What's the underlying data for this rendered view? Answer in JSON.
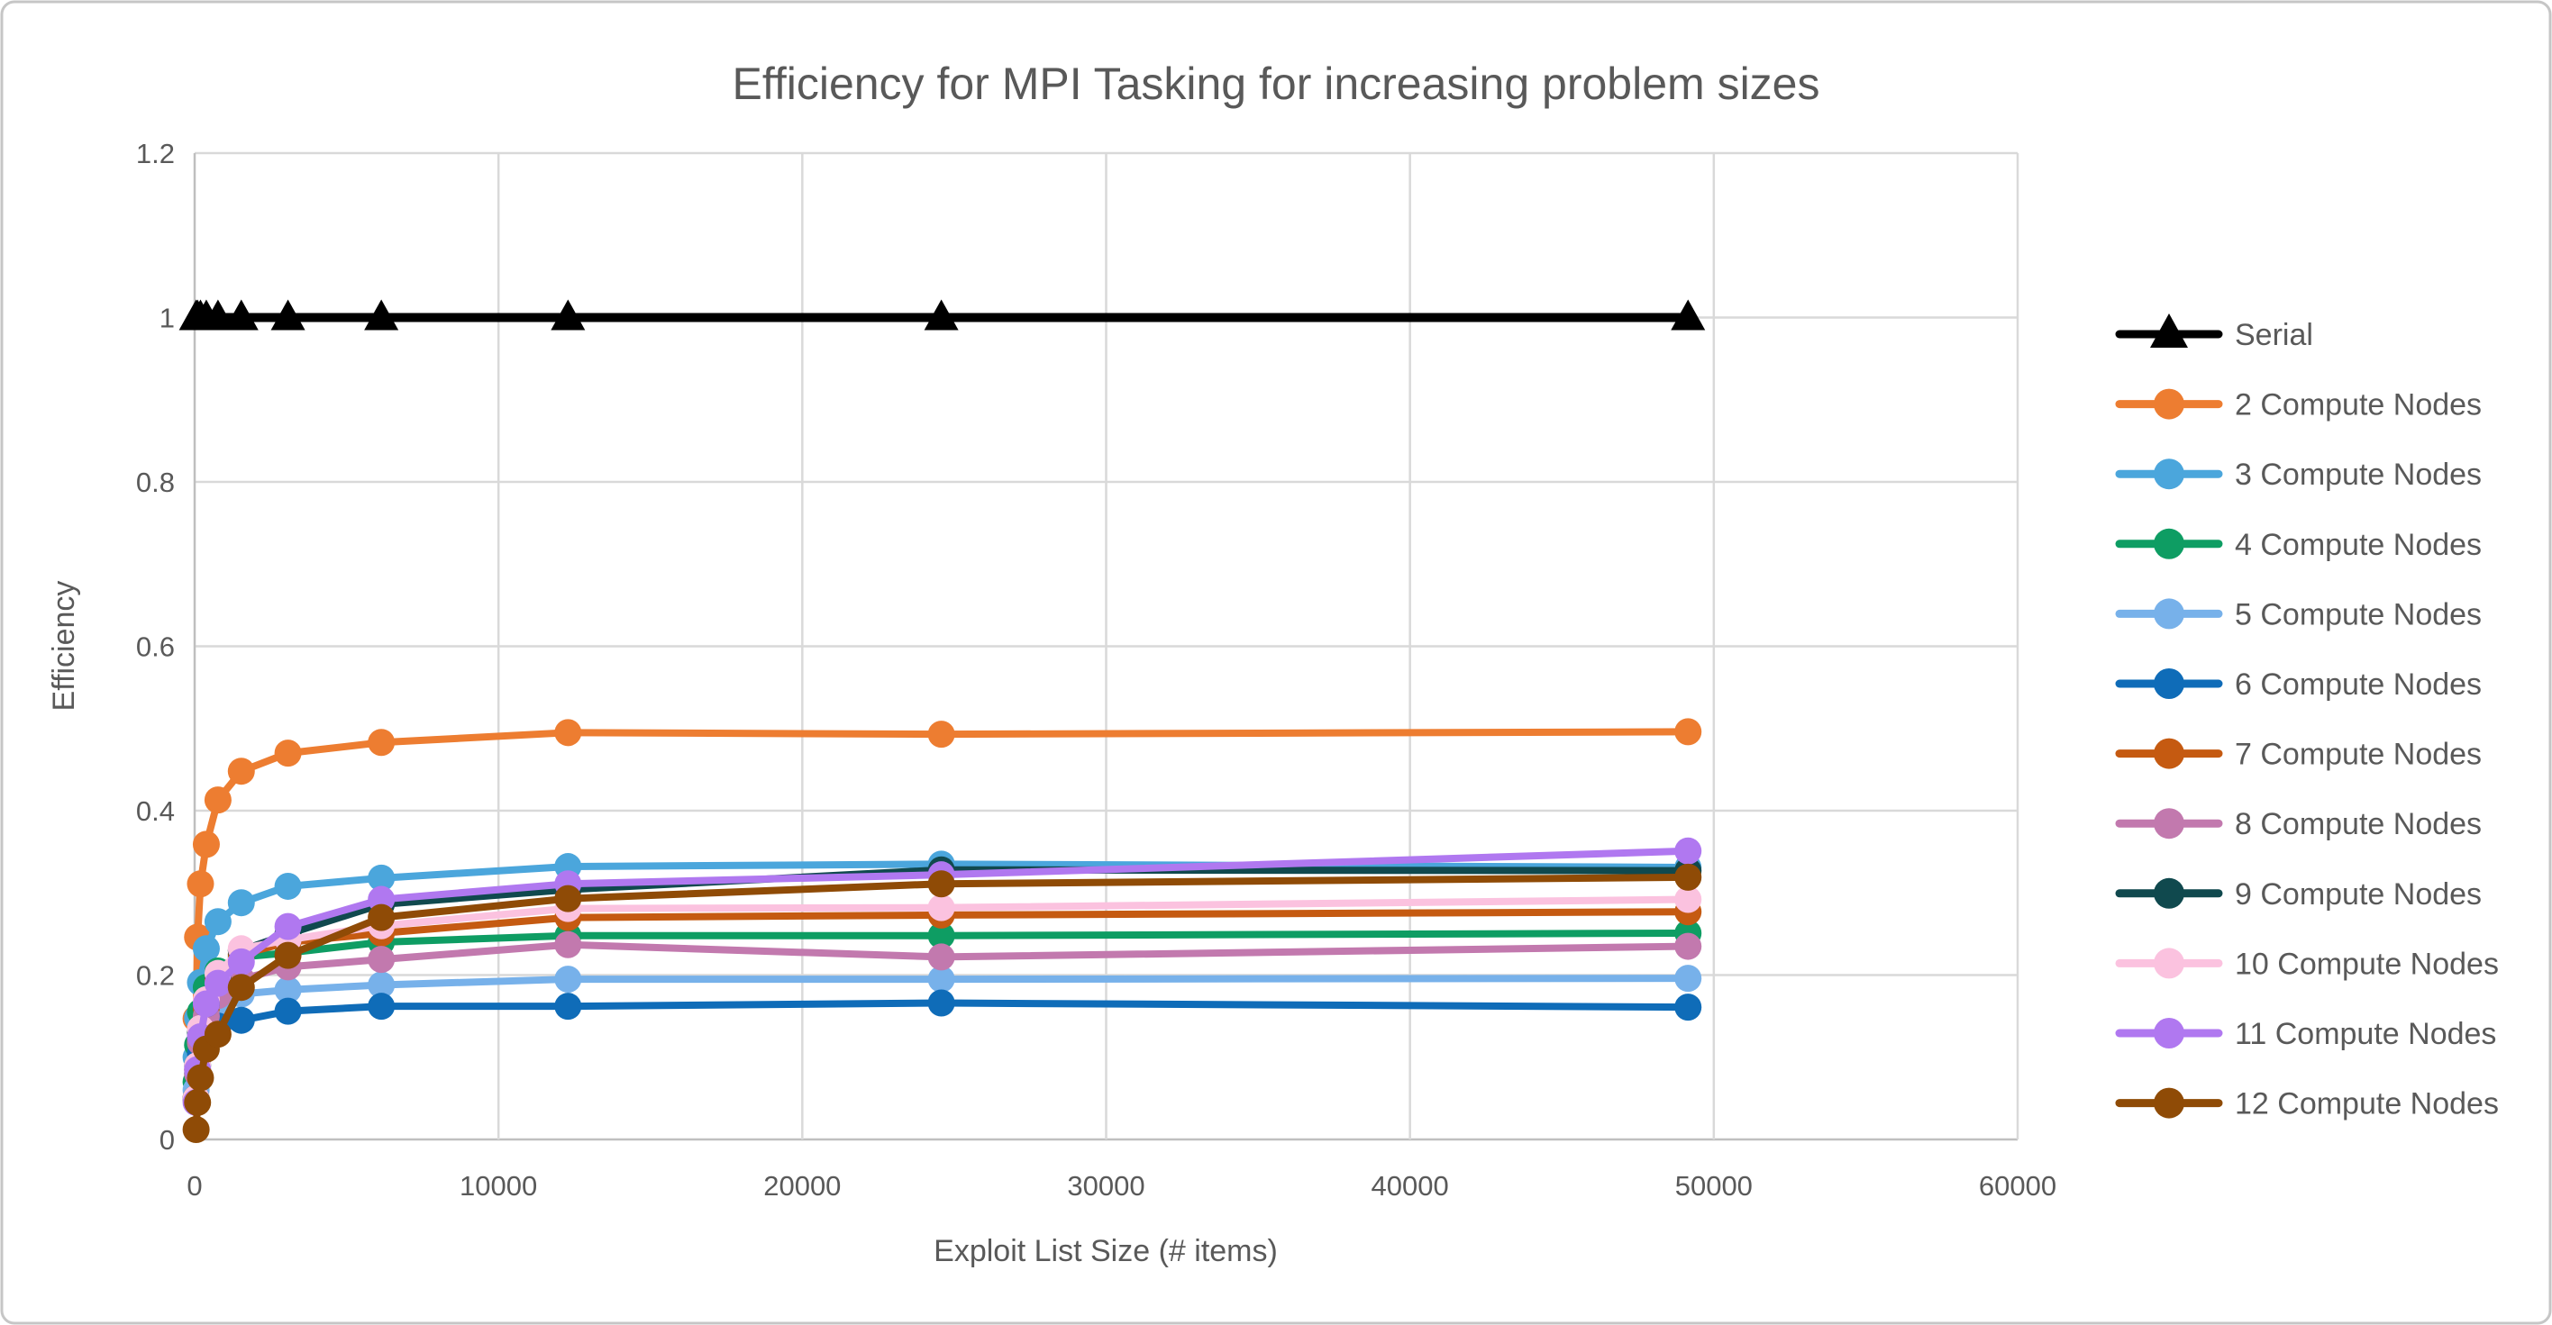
{
  "chart_data": {
    "type": "line",
    "title": "Efficiency for MPI Tasking for increasing problem sizes",
    "xlabel": "Exploit List Size (# items)",
    "ylabel": "Efficiency",
    "xlim": [
      0,
      60000
    ],
    "ylim": [
      0,
      1.2
    ],
    "x_ticks": [
      0,
      10000,
      20000,
      30000,
      40000,
      50000,
      60000
    ],
    "x_tick_labels": [
      "0",
      "10000",
      "20000",
      "30000",
      "40000",
      "50000",
      "60000"
    ],
    "y_ticks": [
      0,
      0.2,
      0.4,
      0.6,
      0.8,
      1,
      1.2
    ],
    "y_tick_labels": [
      "0",
      "0.2",
      "0.4",
      "0.6",
      "0.8",
      "1",
      "1.2"
    ],
    "grid": true,
    "legend_position": "right",
    "x": [
      48,
      96,
      192,
      384,
      768,
      1536,
      3072,
      6144,
      12288,
      24576,
      49152
    ],
    "series": [
      {
        "name": "Serial",
        "color": "#000000",
        "marker": "triangle",
        "values": [
          1,
          1,
          1,
          1,
          1,
          1,
          1,
          1,
          1,
          1,
          1
        ]
      },
      {
        "name": "2 Compute Nodes",
        "color": "#ED7D31",
        "marker": "circle",
        "values": [
          0.147,
          0.246,
          0.311,
          0.359,
          0.413,
          0.448,
          0.47,
          0.483,
          0.495,
          0.493,
          0.496
        ]
      },
      {
        "name": "3 Compute Nodes",
        "color": "#4BA6DC",
        "marker": "circle",
        "values": [
          0.1,
          0.148,
          0.191,
          0.232,
          0.265,
          0.288,
          0.308,
          0.318,
          0.332,
          0.335,
          0.331
        ]
      },
      {
        "name": "4 Compute Nodes",
        "color": "#0E9D63",
        "marker": "circle",
        "values": [
          0.07,
          0.115,
          0.155,
          0.185,
          0.205,
          0.222,
          0.227,
          0.24,
          0.248,
          0.248,
          0.251
        ]
      },
      {
        "name": "5 Compute Nodes",
        "color": "#77B1EA",
        "marker": "circle",
        "values": [
          0.06,
          0.09,
          0.12,
          0.145,
          0.162,
          0.177,
          0.182,
          0.188,
          0.195,
          0.195,
          0.196
        ]
      },
      {
        "name": "6 Compute Nodes",
        "color": "#0F6CB8",
        "marker": "circle",
        "values": [
          0.05,
          0.08,
          0.105,
          0.125,
          0.138,
          0.145,
          0.156,
          0.162,
          0.162,
          0.166,
          0.161
        ]
      },
      {
        "name": "7 Compute Nodes",
        "color": "#C55A11",
        "marker": "circle",
        "values": [
          0.05,
          0.085,
          0.12,
          0.16,
          0.195,
          0.225,
          0.24,
          0.251,
          0.27,
          0.273,
          0.277
        ]
      },
      {
        "name": "8 Compute Nodes",
        "color": "#C279AE",
        "marker": "circle",
        "values": [
          0.048,
          0.08,
          0.118,
          0.15,
          0.175,
          0.195,
          0.21,
          0.219,
          0.237,
          0.222,
          0.235
        ]
      },
      {
        "name": "9 Compute Nodes",
        "color": "#10494E",
        "marker": "circle",
        "values": [
          0.05,
          0.09,
          0.13,
          0.165,
          0.2,
          0.23,
          0.25,
          0.286,
          0.304,
          0.328,
          0.327
        ]
      },
      {
        "name": "10 Compute Nodes",
        "color": "#FBC2DF",
        "marker": "circle",
        "values": [
          0.05,
          0.09,
          0.135,
          0.17,
          0.202,
          0.232,
          0.243,
          0.26,
          0.281,
          0.282,
          0.292
        ]
      },
      {
        "name": "11 Compute Nodes",
        "color": "#B078F0",
        "marker": "circle",
        "values": [
          0.045,
          0.085,
          0.125,
          0.165,
          0.19,
          0.216,
          0.259,
          0.292,
          0.311,
          0.322,
          0.351
        ]
      },
      {
        "name": "12 Compute Nodes",
        "color": "#8F4B06",
        "marker": "circle",
        "values": [
          0.012,
          0.045,
          0.075,
          0.11,
          0.128,
          0.185,
          0.224,
          0.27,
          0.293,
          0.311,
          0.319
        ]
      }
    ],
    "colors": {
      "background": "#FFFFFF",
      "border": "#C6C6C6",
      "grid": "#D9D9D9",
      "axis": "#BFBFBF",
      "text": "#595959"
    }
  }
}
